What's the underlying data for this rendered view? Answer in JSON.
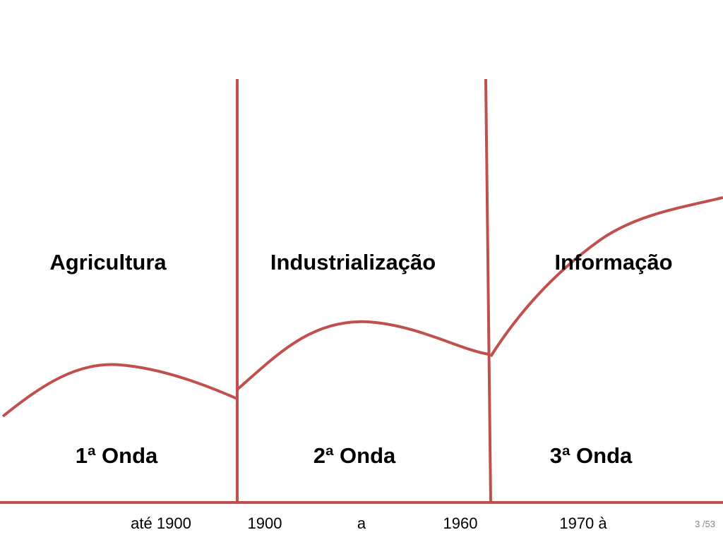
{
  "eras": [
    {
      "label": "Agricultura",
      "wave": "1ª Onda"
    },
    {
      "label": "Industrialização",
      "wave": "2ª Onda"
    },
    {
      "label": "Informação",
      "wave": "3ª Onda"
    }
  ],
  "timeline": [
    "até 1900",
    "1900",
    "a",
    "1960",
    "1970 à"
  ],
  "page_number": "3 /53"
}
